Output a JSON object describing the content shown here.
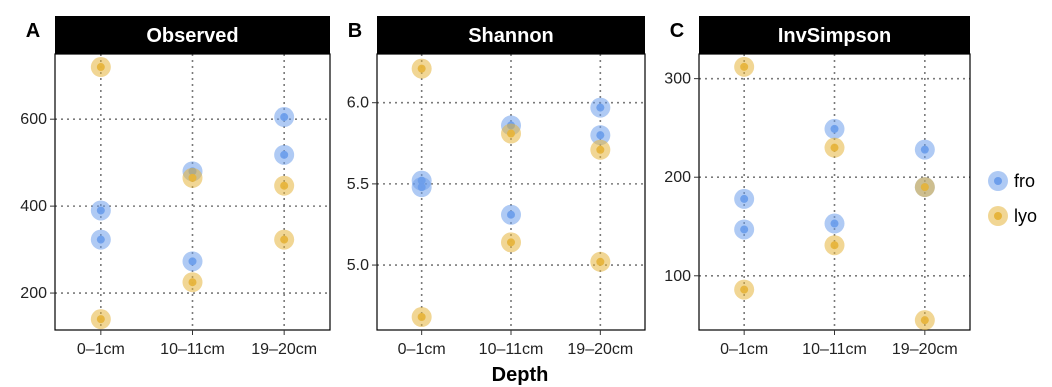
{
  "figure": {
    "xlabel": "Depth",
    "legend": {
      "placement": "right",
      "entries": [
        {
          "name": "fro",
          "color": "#6d9eeb"
        },
        {
          "name": "lyo",
          "color": "#e6b43c"
        }
      ]
    }
  },
  "chart_data": [
    {
      "type": "scatter",
      "panel_letter": "A",
      "title": "Observed",
      "categories": [
        "0–1cm",
        "10–11cm",
        "19–20cm"
      ],
      "yticks": [
        200,
        400,
        600
      ],
      "ylim": [
        115,
        750
      ],
      "grid": true,
      "series": [
        {
          "name": "fro",
          "color": "#6d9eeb",
          "points": [
            {
              "x": "0–1cm",
              "y": 390
            },
            {
              "x": "0–1cm",
              "y": 323
            },
            {
              "x": "10–11cm",
              "y": 480
            },
            {
              "x": "10–11cm",
              "y": 273
            },
            {
              "x": "19–20cm",
              "y": 605
            },
            {
              "x": "19–20cm",
              "y": 518
            }
          ]
        },
        {
          "name": "lyo",
          "color": "#e6b43c",
          "points": [
            {
              "x": "0–1cm",
              "y": 720
            },
            {
              "x": "0–1cm",
              "y": 140
            },
            {
              "x": "10–11cm",
              "y": 465
            },
            {
              "x": "10–11cm",
              "y": 225
            },
            {
              "x": "19–20cm",
              "y": 447
            },
            {
              "x": "19–20cm",
              "y": 323
            }
          ]
        }
      ]
    },
    {
      "type": "scatter",
      "panel_letter": "B",
      "title": "Shannon",
      "categories": [
        "0–1cm",
        "10–11cm",
        "19–20cm"
      ],
      "yticks": [
        5.0,
        5.5,
        6.0
      ],
      "yticklabels": [
        "5.0",
        "5.5",
        "6.0"
      ],
      "ylim": [
        4.6,
        6.3
      ],
      "grid": true,
      "series": [
        {
          "name": "fro",
          "color": "#6d9eeb",
          "points": [
            {
              "x": "0–1cm",
              "y": 5.52
            },
            {
              "x": "0–1cm",
              "y": 5.48
            },
            {
              "x": "10–11cm",
              "y": 5.86
            },
            {
              "x": "10–11cm",
              "y": 5.31
            },
            {
              "x": "19–20cm",
              "y": 5.97
            },
            {
              "x": "19–20cm",
              "y": 5.8
            }
          ]
        },
        {
          "name": "lyo",
          "color": "#e6b43c",
          "points": [
            {
              "x": "0–1cm",
              "y": 6.21
            },
            {
              "x": "0–1cm",
              "y": 4.68
            },
            {
              "x": "10–11cm",
              "y": 5.81
            },
            {
              "x": "10–11cm",
              "y": 5.14
            },
            {
              "x": "19–20cm",
              "y": 5.71
            },
            {
              "x": "19–20cm",
              "y": 5.02
            }
          ]
        }
      ]
    },
    {
      "type": "scatter",
      "panel_letter": "C",
      "title": "InvSimpson",
      "categories": [
        "0–1cm",
        "10–11cm",
        "19–20cm"
      ],
      "yticks": [
        100,
        200,
        300
      ],
      "ylim": [
        45,
        325
      ],
      "grid": true,
      "series": [
        {
          "name": "fro",
          "color": "#6d9eeb",
          "points": [
            {
              "x": "0–1cm",
              "y": 178
            },
            {
              "x": "0–1cm",
              "y": 147
            },
            {
              "x": "10–11cm",
              "y": 249
            },
            {
              "x": "10–11cm",
              "y": 153
            },
            {
              "x": "19–20cm",
              "y": 228
            },
            {
              "x": "19–20cm",
              "y": 190
            }
          ]
        },
        {
          "name": "lyo",
          "color": "#e6b43c",
          "points": [
            {
              "x": "0–1cm",
              "y": 312
            },
            {
              "x": "0–1cm",
              "y": 86
            },
            {
              "x": "10–11cm",
              "y": 230
            },
            {
              "x": "10–11cm",
              "y": 131
            },
            {
              "x": "19–20cm",
              "y": 190
            },
            {
              "x": "19–20cm",
              "y": 55
            }
          ]
        }
      ]
    }
  ]
}
